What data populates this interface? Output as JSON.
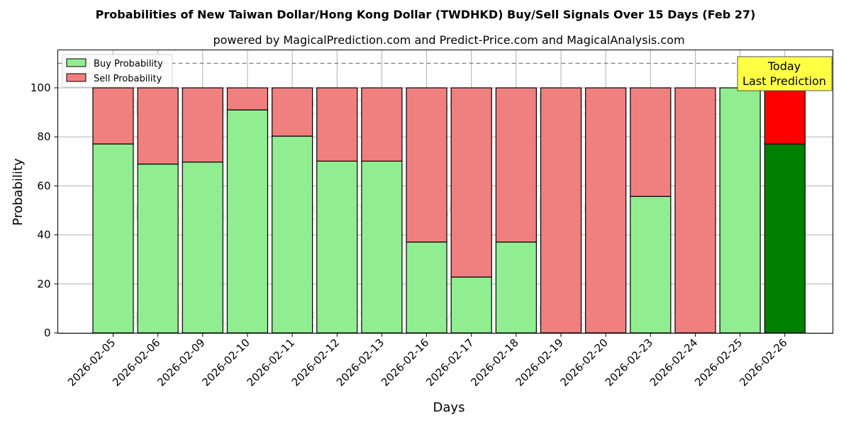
{
  "chart_data": {
    "type": "bar",
    "stacked": true,
    "title": "Probabilities of New Taiwan Dollar/Hong Kong Dollar (TWDHKD) Buy/Sell Signals Over 15 Days (Feb 27)",
    "subtitle": "powered by MagicalPrediction.com and Predict-Price.com and MagicalAnalysis.com",
    "xlabel": "Days",
    "ylabel": "Probability",
    "ylim": [
      0,
      115
    ],
    "yticks": [
      0,
      20,
      40,
      60,
      80,
      100
    ],
    "grid": true,
    "legend_position": "upper left",
    "categories": [
      "2026-02-05",
      "2026-02-06",
      "2026-02-09",
      "2026-02-10",
      "2026-02-11",
      "2026-02-12",
      "2026-02-13",
      "2026-02-16",
      "2026-02-17",
      "2026-02-18",
      "2026-02-19",
      "2026-02-20",
      "2026-02-23",
      "2026-02-24",
      "2026-02-25",
      "2026-02-26"
    ],
    "series": [
      {
        "name": "Buy Probability",
        "color": "#90ee90",
        "values": [
          77.1,
          68.9,
          69.7,
          91.0,
          80.3,
          70.1,
          70.1,
          37.1,
          22.8,
          37.1,
          0,
          0,
          55.7,
          0,
          100,
          77.1
        ]
      },
      {
        "name": "Sell Probability",
        "color": "#f08080",
        "values": [
          22.9,
          31.1,
          30.3,
          9.0,
          19.7,
          29.9,
          29.9,
          62.9,
          77.2,
          62.9,
          100,
          100,
          44.3,
          100,
          0,
          22.9
        ]
      }
    ],
    "highlight": {
      "index": 15,
      "buy_color": "#008000",
      "sell_color": "#ff0000"
    },
    "reference_line": {
      "y": 110,
      "style": "dashed",
      "color": "#808080"
    },
    "annotation": {
      "lines": [
        "Today",
        "Last Prediction"
      ],
      "background": "#ffff44"
    },
    "watermarks": [
      "MagicalAnalysis.com",
      "MagicalPrediction.com"
    ]
  }
}
